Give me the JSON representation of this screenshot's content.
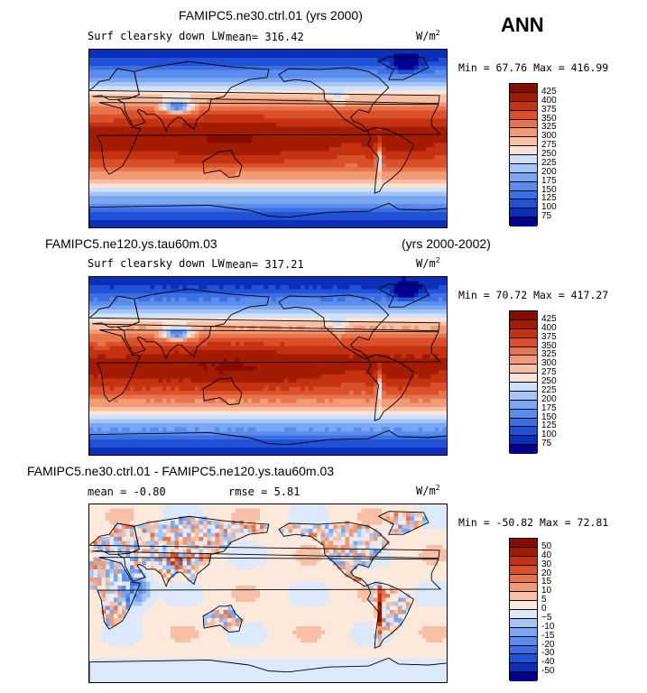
{
  "season": "ANN",
  "panels": [
    {
      "id": "top",
      "case_title": "FAMIPC5.ne30.ctrl.01 (yrs 2000)",
      "case_years": "",
      "variable": "Surf clearsky down LW",
      "stat_text": "mean= 316.42",
      "stat2_text": "",
      "units": "W/m",
      "units_sup": "2",
      "minmax": "Min =  67.76 Max = 416.99",
      "field": "abs"
    },
    {
      "id": "middle",
      "case_title": "FAMIPC5.ne120.ys.tau60m.03",
      "case_years": "(yrs 2000-2002)",
      "variable": "Surf clearsky down LW",
      "stat_text": "mean= 317.21",
      "stat2_text": "",
      "units": "W/m",
      "units_sup": "2",
      "minmax": "Min =  70.72 Max = 417.27",
      "field": "abs"
    },
    {
      "id": "bottom",
      "case_title": "FAMIPC5.ne30.ctrl.01 - FAMIPC5.ne120.ys.tau60m.03",
      "case_years": "",
      "variable": "",
      "stat_text": "mean =  -0.80",
      "stat2_text": "rmse =   5.81",
      "units": "W/m",
      "units_sup": "2",
      "minmax": "Min = -50.82 Max =  72.81",
      "field": "diff"
    }
  ],
  "chart_data": [
    {
      "type": "heatmap",
      "title": "FAMIPC5.ne30.ctrl.01 (yrs 2000)",
      "subtitle": "Surf clearsky down LW",
      "units": "W/m^2",
      "mean": 316.42,
      "min": 67.76,
      "max": 416.99,
      "season": "ANN",
      "colorbar_levels": [
        75,
        100,
        125,
        150,
        175,
        200,
        225,
        250,
        275,
        300,
        325,
        350,
        375,
        400,
        425
      ],
      "colorbar_colors": [
        "#00008f",
        "#0b2fb8",
        "#1f52d6",
        "#3b6fe3",
        "#5a8cee",
        "#7aa7f3",
        "#a6c5f7",
        "#cfe1fa",
        "#fbe3d6",
        "#f7c0a4",
        "#f29a74",
        "#e8744c",
        "#db4f2b",
        "#c4320f",
        "#a31b00",
        "#860c00"
      ]
    },
    {
      "type": "heatmap",
      "title": "FAMIPC5.ne120.ys.tau60m.03 (yrs 2000-2002)",
      "subtitle": "Surf clearsky down LW",
      "units": "W/m^2",
      "mean": 317.21,
      "min": 70.72,
      "max": 417.27,
      "season": "ANN",
      "colorbar_levels": [
        75,
        100,
        125,
        150,
        175,
        200,
        225,
        250,
        275,
        300,
        325,
        350,
        375,
        400,
        425
      ],
      "colorbar_colors": [
        "#00008f",
        "#0b2fb8",
        "#1f52d6",
        "#3b6fe3",
        "#5a8cee",
        "#7aa7f3",
        "#a6c5f7",
        "#cfe1fa",
        "#fbe3d6",
        "#f7c0a4",
        "#f29a74",
        "#e8744c",
        "#db4f2b",
        "#c4320f",
        "#a31b00",
        "#860c00"
      ]
    },
    {
      "type": "heatmap",
      "title": "FAMIPC5.ne30.ctrl.01 - FAMIPC5.ne120.ys.tau60m.03",
      "units": "W/m^2",
      "mean": -0.8,
      "rmse": 5.81,
      "min": -50.82,
      "max": 72.81,
      "season": "ANN",
      "colorbar_levels": [
        -50,
        -40,
        -30,
        -20,
        -15,
        -10,
        -5,
        0,
        5,
        10,
        15,
        20,
        30,
        40,
        50
      ],
      "colorbar_labels": [
        "-50",
        "-40",
        "-30",
        "-20",
        "-15",
        "-10",
        "−5",
        "0",
        "5",
        "10",
        "15",
        "20",
        "30",
        "40",
        "50"
      ],
      "colorbar_colors": [
        "#00008f",
        "#0b2fb8",
        "#1f52d6",
        "#3b6fe3",
        "#5a8cee",
        "#7aa7f3",
        "#a6c5f7",
        "#dbe9fb",
        "#fde9dc",
        "#f7c0a4",
        "#f29a74",
        "#e8744c",
        "#db4f2b",
        "#c4320f",
        "#a31b00",
        "#860c00"
      ]
    }
  ]
}
